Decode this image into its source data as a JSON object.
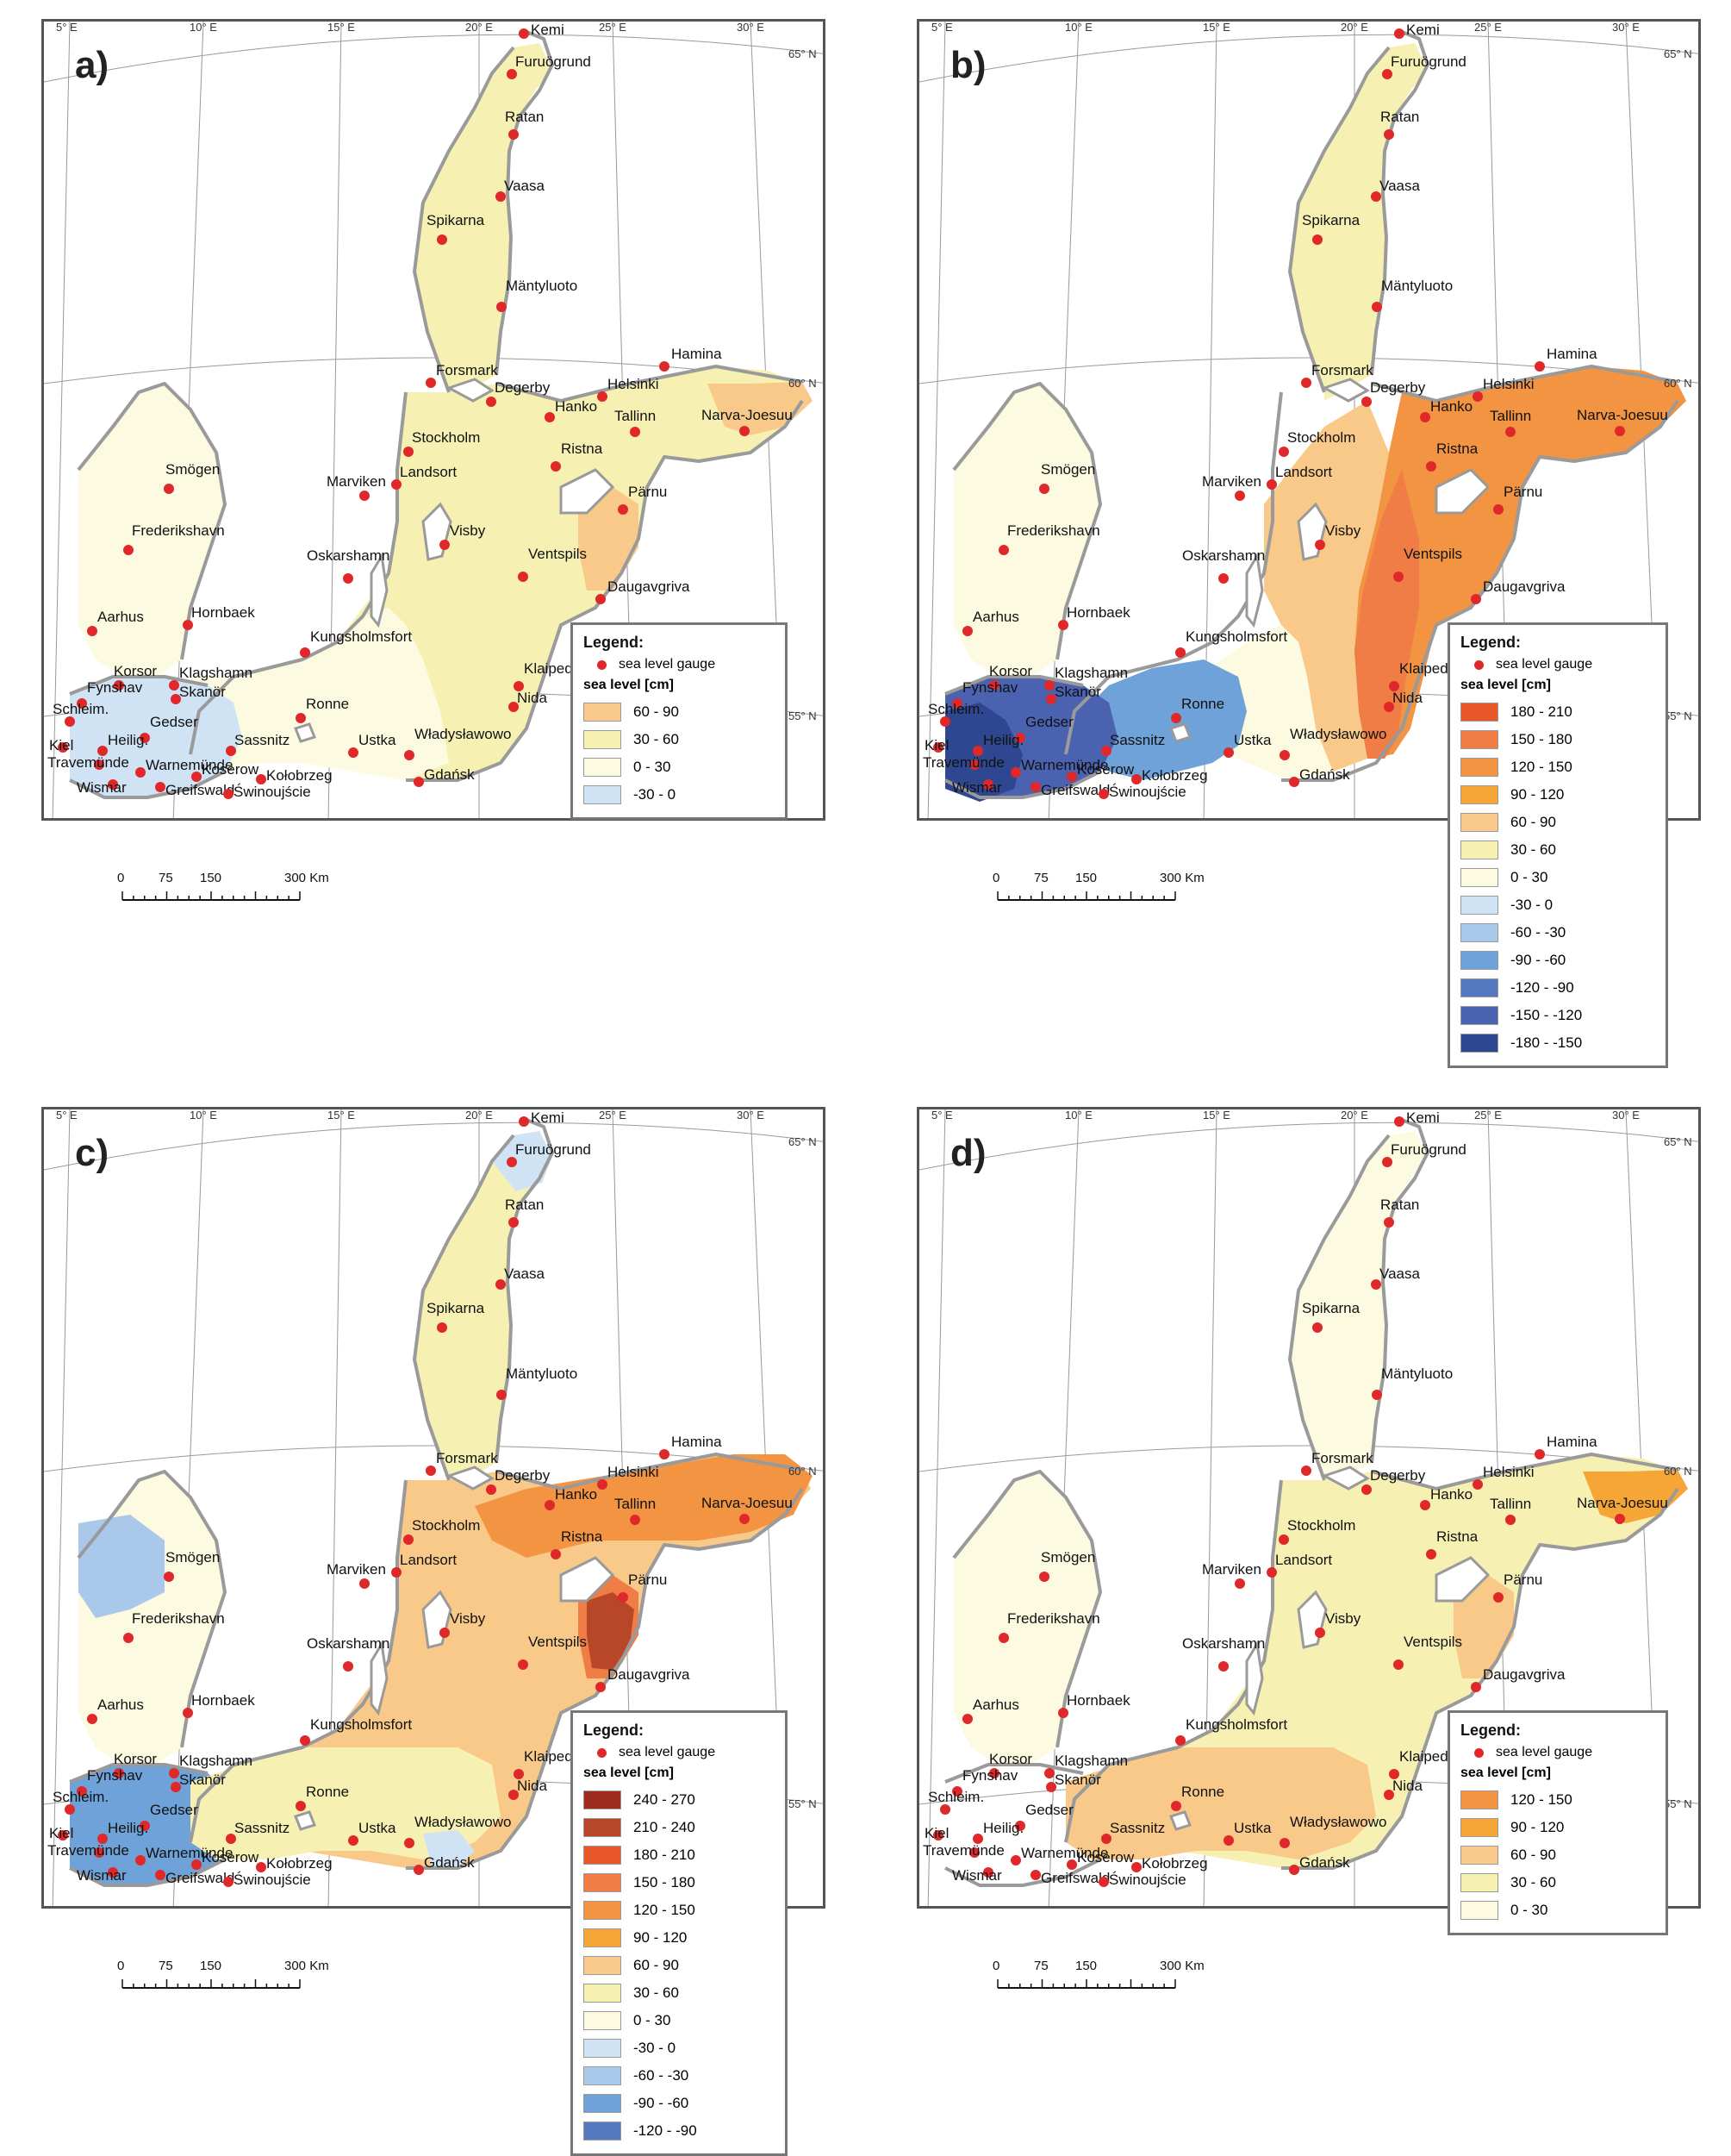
{
  "colors": {
    "gauge": "#e0282a",
    "land": "#ffffff",
    "coast": "#9a9a9a",
    "frame": "#555555",
    "grid": "#9a9a9a"
  },
  "legend_strings": {
    "title": "Legend:",
    "gauge": "sea level gauge",
    "sub": "sea level [cm]"
  },
  "scale_labels": [
    "0",
    "75",
    "150",
    "300 Km"
  ],
  "lon_labels": [
    "5° E",
    "10° E",
    "15° E",
    "20° E",
    "25° E",
    "30° E"
  ],
  "lon_labels_bottom": [
    "10° E",
    "15° E",
    "20° E",
    "25° E"
  ],
  "lat_labels": [
    "65° N",
    "60° N",
    "55° N"
  ],
  "gauges": [
    {
      "n": "Kemi"
    },
    {
      "n": "Furuögrund"
    },
    {
      "n": "Ratan"
    },
    {
      "n": "Vaasa"
    },
    {
      "n": "Spikarna"
    },
    {
      "n": "Mäntyluoto"
    },
    {
      "n": "Hamina"
    },
    {
      "n": "Forsmark"
    },
    {
      "n": "Helsinki"
    },
    {
      "n": "Degerby"
    },
    {
      "n": "Hanko"
    },
    {
      "n": "Narva-Joesuu"
    },
    {
      "n": "Tallinn"
    },
    {
      "n": "Stockholm"
    },
    {
      "n": "Smögen"
    },
    {
      "n": "Ristna"
    },
    {
      "n": "Landsort"
    },
    {
      "n": "Marviken"
    },
    {
      "n": "Pärnu"
    },
    {
      "n": "Frederikshavn"
    },
    {
      "n": "Visby"
    },
    {
      "n": "Oskarshamn"
    },
    {
      "n": "Ventspils"
    },
    {
      "n": "Daugavgriva"
    },
    {
      "n": "Aarhus"
    },
    {
      "n": "Hornbaek"
    },
    {
      "n": "Kungsholmsfort"
    },
    {
      "n": "Klagshamn"
    },
    {
      "n": "Korsor"
    },
    {
      "n": "Fynshav"
    },
    {
      "n": "Skanör"
    },
    {
      "n": "Klaipeda"
    },
    {
      "n": "Nida"
    },
    {
      "n": "Schleim."
    },
    {
      "n": "Ronne"
    },
    {
      "n": "Gedser"
    },
    {
      "n": "Kiel"
    },
    {
      "n": "Heilig."
    },
    {
      "n": "Sassnitz"
    },
    {
      "n": "Ustka"
    },
    {
      "n": "Władysławowo"
    },
    {
      "n": "Travemünde"
    },
    {
      "n": "Warnemünde"
    },
    {
      "n": "Gdańsk"
    },
    {
      "n": "Koserow"
    },
    {
      "n": "Kołobrzeg"
    },
    {
      "n": "Wismar"
    },
    {
      "n": "Greifswald"
    },
    {
      "n": "Świnoujście"
    }
  ],
  "panels": [
    {
      "label": "a)",
      "legend": [
        {
          "range": "60 - 90",
          "color": "#f9c98a"
        },
        {
          "range": "30 - 60",
          "color": "#f6f1b3"
        },
        {
          "range": "0 - 30",
          "color": "#fcfbe1"
        },
        {
          "range": "-30 - 0",
          "color": "#cfe3f5"
        }
      ],
      "regions": [
        {
          "name": "baltic-proper",
          "color": "#f6f1b3"
        },
        {
          "name": "bothnian-bay",
          "color": "#f6f1b3"
        },
        {
          "name": "kattegat",
          "color": "#fcfbe1"
        },
        {
          "name": "south-west",
          "color": "#fcfbe1"
        },
        {
          "name": "western-belt",
          "color": "#cfe3f5"
        },
        {
          "name": "east-finland",
          "color": "#f9c98a"
        },
        {
          "name": "gulf-of-riga",
          "color": "#f9c98a"
        }
      ]
    },
    {
      "label": "b)",
      "legend": [
        {
          "range": "180 - 210",
          "color": "#e8572a"
        },
        {
          "range": "150 - 180",
          "color": "#ef7d45"
        },
        {
          "range": "120 - 150",
          "color": "#f29442"
        },
        {
          "range": "90 - 120",
          "color": "#f5a637"
        },
        {
          "range": "60 - 90",
          "color": "#f9c98a"
        },
        {
          "range": "30 - 60",
          "color": "#f6f1b3"
        },
        {
          "range": "0 - 30",
          "color": "#fcfbe1"
        },
        {
          "range": "-30 - 0",
          "color": "#cfe3f5"
        },
        {
          "range": "-60 - -30",
          "color": "#a9c8ea"
        },
        {
          "range": "-90 - -60",
          "color": "#6ea2d8"
        },
        {
          "range": "-120 - -90",
          "color": "#5579c0"
        },
        {
          "range": "-150 - -120",
          "color": "#4a62b0"
        },
        {
          "range": "-180 - -150",
          "color": "#2f4790"
        }
      ],
      "regions": [
        {
          "name": "bothnian-bay",
          "color": "#f6f1b3"
        },
        {
          "name": "kattegat",
          "color": "#fcfbe1"
        },
        {
          "name": "baltic-east",
          "color": "#f29442"
        },
        {
          "name": "baltic-middle",
          "color": "#f9c98a"
        },
        {
          "name": "baltic-transition",
          "color": "#fcfbe1"
        },
        {
          "name": "bornholm",
          "color": "#6ea2d8"
        },
        {
          "name": "western-belt",
          "color": "#4a62b0"
        },
        {
          "name": "far-west",
          "color": "#2f4790"
        },
        {
          "name": "east-coast",
          "color": "#ef7d45"
        }
      ]
    },
    {
      "label": "c)",
      "legend": [
        {
          "range": "240 - 270",
          "color": "#9e2a1d"
        },
        {
          "range": "210 - 240",
          "color": "#b8472a"
        },
        {
          "range": "180 - 210",
          "color": "#e8572a"
        },
        {
          "range": "150 - 180",
          "color": "#ef7d45"
        },
        {
          "range": "120 - 150",
          "color": "#f29442"
        },
        {
          "range": "90 - 120",
          "color": "#f5a637"
        },
        {
          "range": "60 - 90",
          "color": "#f9c98a"
        },
        {
          "range": "30 - 60",
          "color": "#f6f1b3"
        },
        {
          "range": "0 - 30",
          "color": "#fcfbe1"
        },
        {
          "range": "-30 - 0",
          "color": "#cfe3f5"
        },
        {
          "range": "-60 - -30",
          "color": "#a9c8ea"
        },
        {
          "range": "-90 - -60",
          "color": "#6ea2d8"
        },
        {
          "range": "-120 - -90",
          "color": "#5579c0"
        }
      ],
      "regions": [
        {
          "name": "bothnian-bay",
          "color": "#f6f1b3"
        },
        {
          "name": "bothnian-top",
          "color": "#cfe3f5"
        },
        {
          "name": "baltic-proper",
          "color": "#f9c98a"
        },
        {
          "name": "kattegat",
          "color": "#fcfbe1"
        },
        {
          "name": "skagerrak",
          "color": "#a9c8ea"
        },
        {
          "name": "gulf-of-finland",
          "color": "#f29442"
        },
        {
          "name": "gulf-of-riga",
          "color": "#ef7d45"
        },
        {
          "name": "riga-inner",
          "color": "#b8472a"
        },
        {
          "name": "western-belt",
          "color": "#6ea2d8"
        },
        {
          "name": "south",
          "color": "#f6f1b3"
        },
        {
          "name": "gdansk-bay",
          "color": "#cfe3f5"
        }
      ]
    },
    {
      "label": "d)",
      "legend": [
        {
          "range": "120 - 150",
          "color": "#f29442"
        },
        {
          "range": "90 - 120",
          "color": "#f5a637"
        },
        {
          "range": "60 - 90",
          "color": "#f9c98a"
        },
        {
          "range": "30 - 60",
          "color": "#f6f1b3"
        },
        {
          "range": "0 - 30",
          "color": "#fcfbe1"
        }
      ],
      "regions": [
        {
          "name": "bothnian-bay",
          "color": "#fcfbe1"
        },
        {
          "name": "baltic-proper",
          "color": "#f6f1b3"
        },
        {
          "name": "kattegat",
          "color": "#fcfbe1"
        },
        {
          "name": "south",
          "color": "#f9c98a"
        },
        {
          "name": "east-finland",
          "color": "#f5a637"
        },
        {
          "name": "gulf-of-riga",
          "color": "#f9c98a"
        }
      ]
    }
  ]
}
